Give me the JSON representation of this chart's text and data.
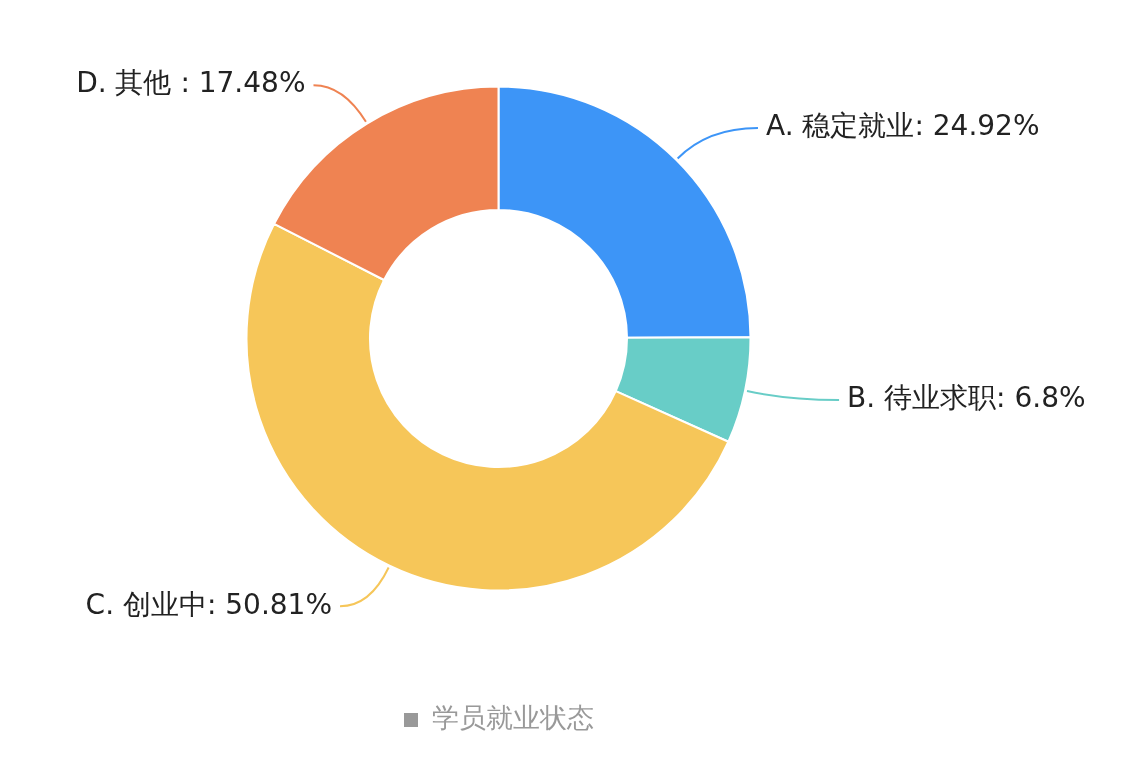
{
  "chart_data": {
    "type": "donut",
    "categories": [
      "A. 稳定就业",
      "B. 待业求职",
      "C. 创业中",
      "D. 其他 "
    ],
    "series": [
      {
        "name": "学员就业状态",
        "values": [
          24.92,
          6.8,
          50.81,
          17.48
        ],
        "colors": [
          "#3d95f7",
          "#68cdc7",
          "#f6c659",
          "#ef8352"
        ]
      }
    ],
    "value_labels": [
      ": 24.92%",
      ": 6.8%",
      ": 50.81%",
      ": 17.48%"
    ],
    "legend": "bottom"
  }
}
